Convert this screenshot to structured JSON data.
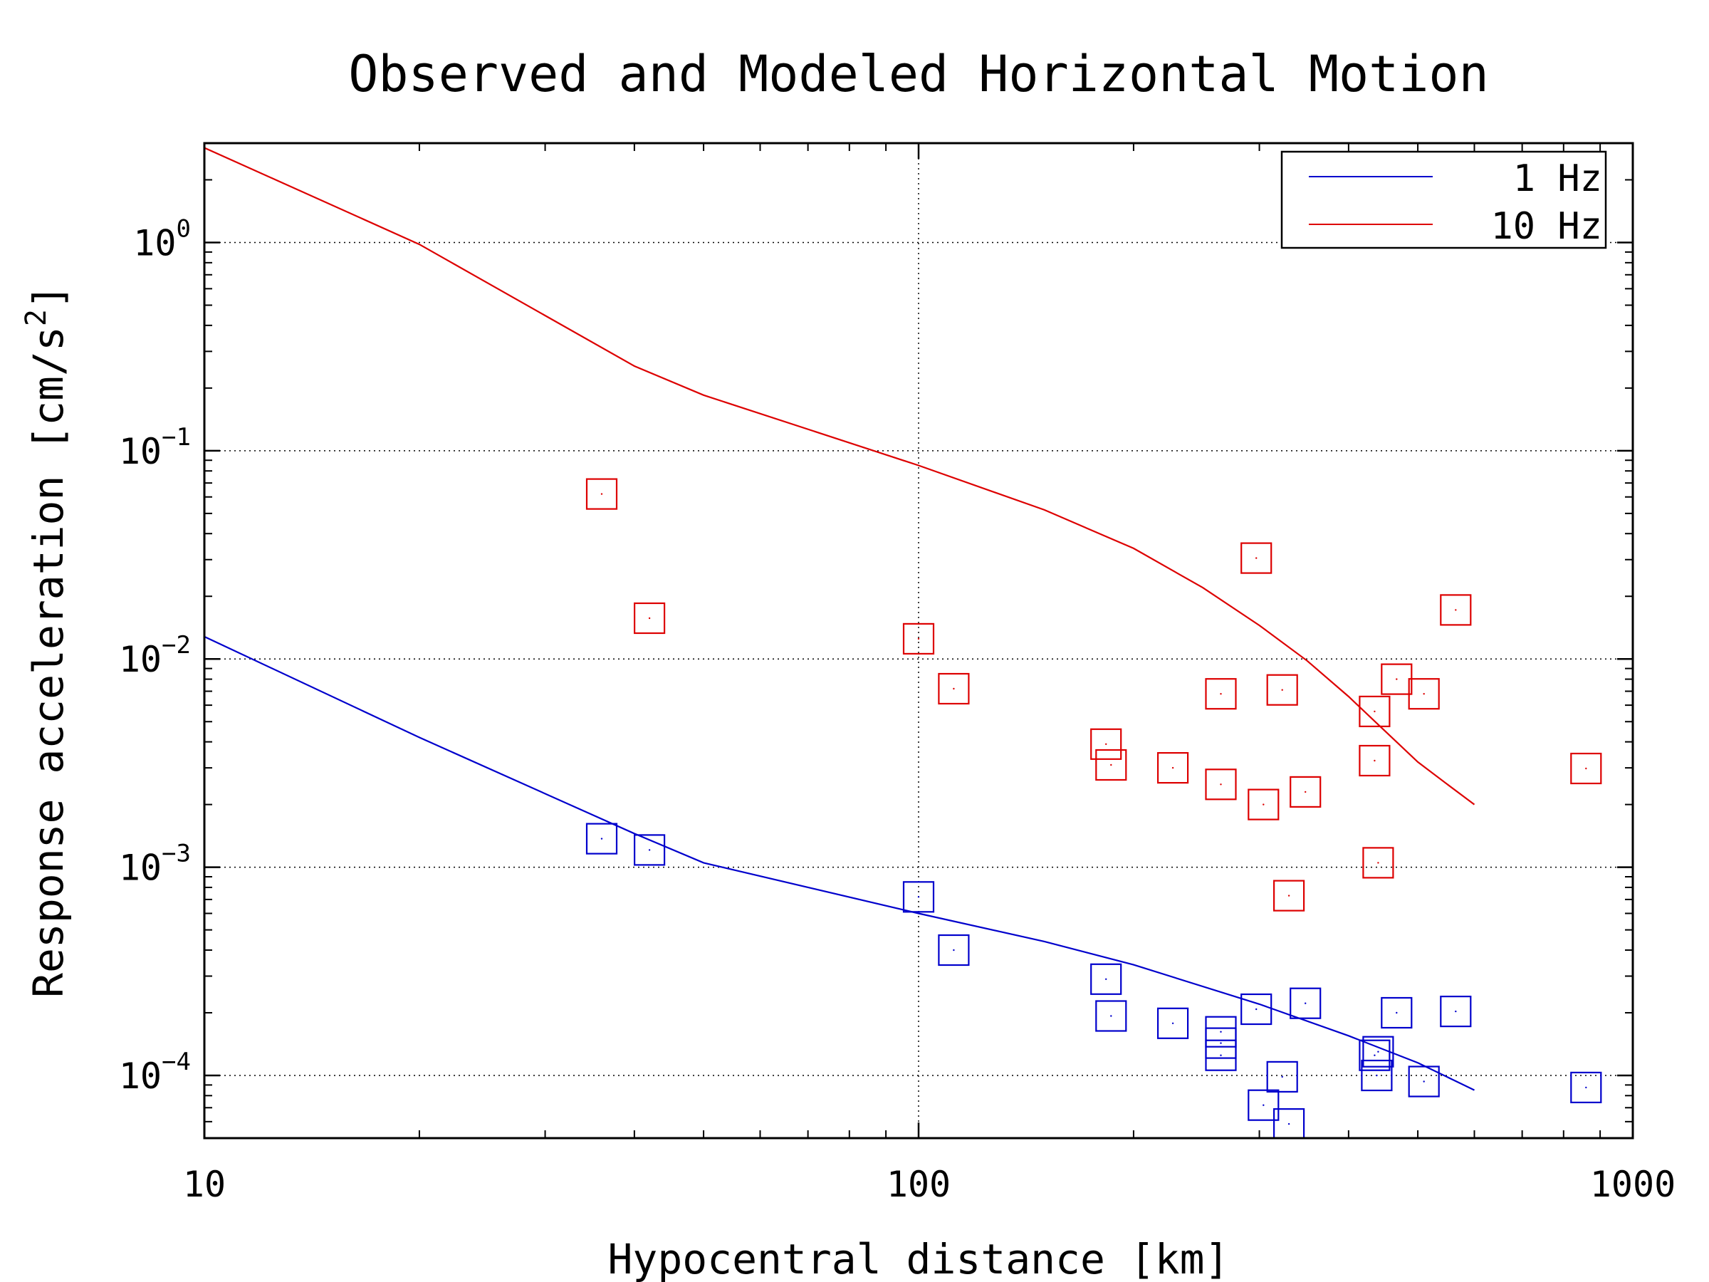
{
  "chart_data": {
    "type": "scatter",
    "title": "Observed and Modeled Horizontal Motion",
    "xlabel": "Hypocentral distance [km]",
    "ylabel": {
      "prefix": "Response acceleration [cm/s",
      "sup": "2",
      "suffix": "]"
    },
    "x_scale": "log",
    "y_scale": "log",
    "xlim": [
      10,
      1000
    ],
    "ylim": [
      5e-05,
      3
    ],
    "x_ticks": [
      {
        "value": 10,
        "label": "10"
      },
      {
        "value": 100,
        "label": "100"
      },
      {
        "value": 1000,
        "label": "1000"
      }
    ],
    "y_ticks": [
      {
        "value": 1,
        "base": "10",
        "exp": "0"
      },
      {
        "value": 0.1,
        "base": "10",
        "exp": "−1"
      },
      {
        "value": 0.01,
        "base": "10",
        "exp": "−2"
      },
      {
        "value": 0.001,
        "base": "10",
        "exp": "−3"
      },
      {
        "value": 0.0001,
        "base": "10",
        "exp": "−4"
      }
    ],
    "grid": true,
    "legend_position": "top-right",
    "series": [
      {
        "name": "1 Hz",
        "color": "#0000cc",
        "line": {
          "x": [
            10,
            20,
            40,
            50,
            100,
            150,
            200,
            300,
            400,
            500,
            600
          ],
          "y": [
            0.0128,
            0.0042,
            0.00145,
            0.00105,
            0.0006,
            0.00044,
            0.00034,
            0.00022,
            0.000155,
            0.000115,
            8.5e-05
          ]
        },
        "points": {
          "x": [
            36,
            42,
            100,
            112,
            183,
            186,
            227,
            265,
            265,
            265,
            297,
            304,
            323,
            330,
            348,
            435,
            438,
            440,
            467,
            510,
            565,
            860
          ],
          "y": [
            0.00137,
            0.00121,
            0.00072,
            0.0004,
            0.00029,
            0.000193,
            0.000178,
            0.000162,
            0.000143,
            0.000125,
            0.000208,
            7.2e-05,
            9.85e-05,
            5.85e-05,
            0.000222,
            0.000125,
            0.0001,
            0.00013,
            0.0002,
            9.35e-05,
            0.000203,
            8.75e-05
          ]
        }
      },
      {
        "name": "10 Hz",
        "color": "#dd0000",
        "line": {
          "x": [
            10,
            20,
            40,
            50,
            100,
            150,
            200,
            250,
            300,
            350,
            400,
            450,
            500,
            550,
            600
          ],
          "y": [
            2.85,
            0.98,
            0.255,
            0.185,
            0.085,
            0.052,
            0.034,
            0.022,
            0.0145,
            0.0098,
            0.0066,
            0.0045,
            0.0032,
            0.0025,
            0.002
          ]
        },
        "points": {
          "x": [
            36,
            42,
            100,
            112,
            183,
            186,
            227,
            265,
            265,
            297,
            304,
            323,
            330,
            348,
            435,
            435,
            440,
            467,
            510,
            565,
            860
          ],
          "y": [
            0.062,
            0.0157,
            0.0125,
            0.0072,
            0.0039,
            0.0031,
            0.003,
            0.0068,
            0.0025,
            0.0305,
            0.002,
            0.0071,
            0.00073,
            0.0023,
            0.0056,
            0.00325,
            0.00105,
            0.008,
            0.0068,
            0.0172,
            0.00298
          ]
        }
      }
    ]
  }
}
